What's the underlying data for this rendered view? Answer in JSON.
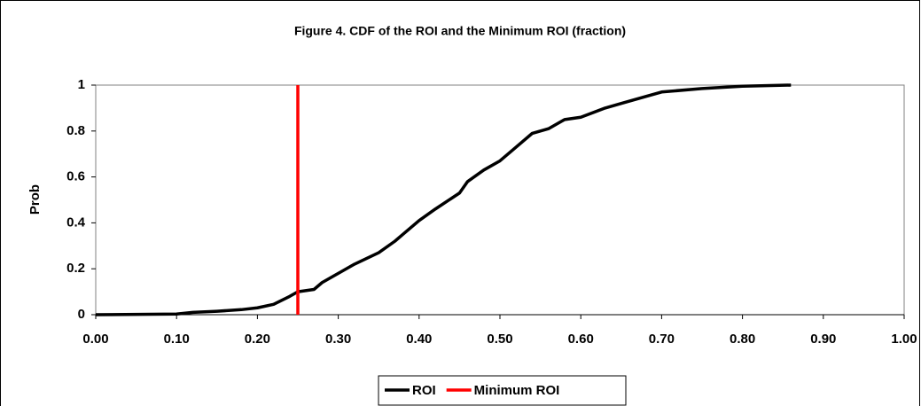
{
  "chart_data": {
    "type": "line",
    "title": "Figure 4. CDF of the ROI and the Minimum ROI (fraction)",
    "y_label": "Prob",
    "series": [
      {
        "name": "ROI",
        "color": "#000000",
        "x": [
          0.0,
          0.1,
          0.12,
          0.15,
          0.18,
          0.2,
          0.22,
          0.24,
          0.25,
          0.27,
          0.28,
          0.3,
          0.32,
          0.35,
          0.37,
          0.38,
          0.4,
          0.42,
          0.45,
          0.46,
          0.48,
          0.5,
          0.52,
          0.54,
          0.56,
          0.58,
          0.6,
          0.63,
          0.65,
          0.68,
          0.7,
          0.75,
          0.8,
          0.86
        ],
        "values": [
          0,
          0.003,
          0.01,
          0.015,
          0.022,
          0.03,
          0.045,
          0.08,
          0.1,
          0.11,
          0.14,
          0.18,
          0.22,
          0.27,
          0.32,
          0.35,
          0.41,
          0.46,
          0.53,
          0.58,
          0.63,
          0.67,
          0.73,
          0.79,
          0.81,
          0.85,
          0.86,
          0.9,
          0.92,
          0.95,
          0.97,
          0.985,
          0.995,
          1
        ]
      },
      {
        "name": "Minimum ROI",
        "color": "#ff0000",
        "x": [
          0.25,
          0.25
        ],
        "values": [
          0,
          1
        ]
      }
    ],
    "xlim": [
      0,
      1
    ],
    "ylim": [
      0,
      1
    ],
    "xticks": [
      {
        "value": 0,
        "label": "0.00"
      },
      {
        "value": 0.1,
        "label": "0.10"
      },
      {
        "value": 0.2,
        "label": "0.20"
      },
      {
        "value": 0.3,
        "label": "0.30"
      },
      {
        "value": 0.4,
        "label": "0.40"
      },
      {
        "value": 0.5,
        "label": "0.50"
      },
      {
        "value": 0.6,
        "label": "0.60"
      },
      {
        "value": 0.7,
        "label": "0.70"
      },
      {
        "value": 0.8,
        "label": "0.80"
      },
      {
        "value": 0.9,
        "label": "0.90"
      },
      {
        "value": 1,
        "label": "1.00"
      }
    ],
    "yticks": [
      0,
      0.2,
      0.4,
      0.6,
      0.8,
      1
    ],
    "grid": false,
    "legend": "bottom"
  }
}
